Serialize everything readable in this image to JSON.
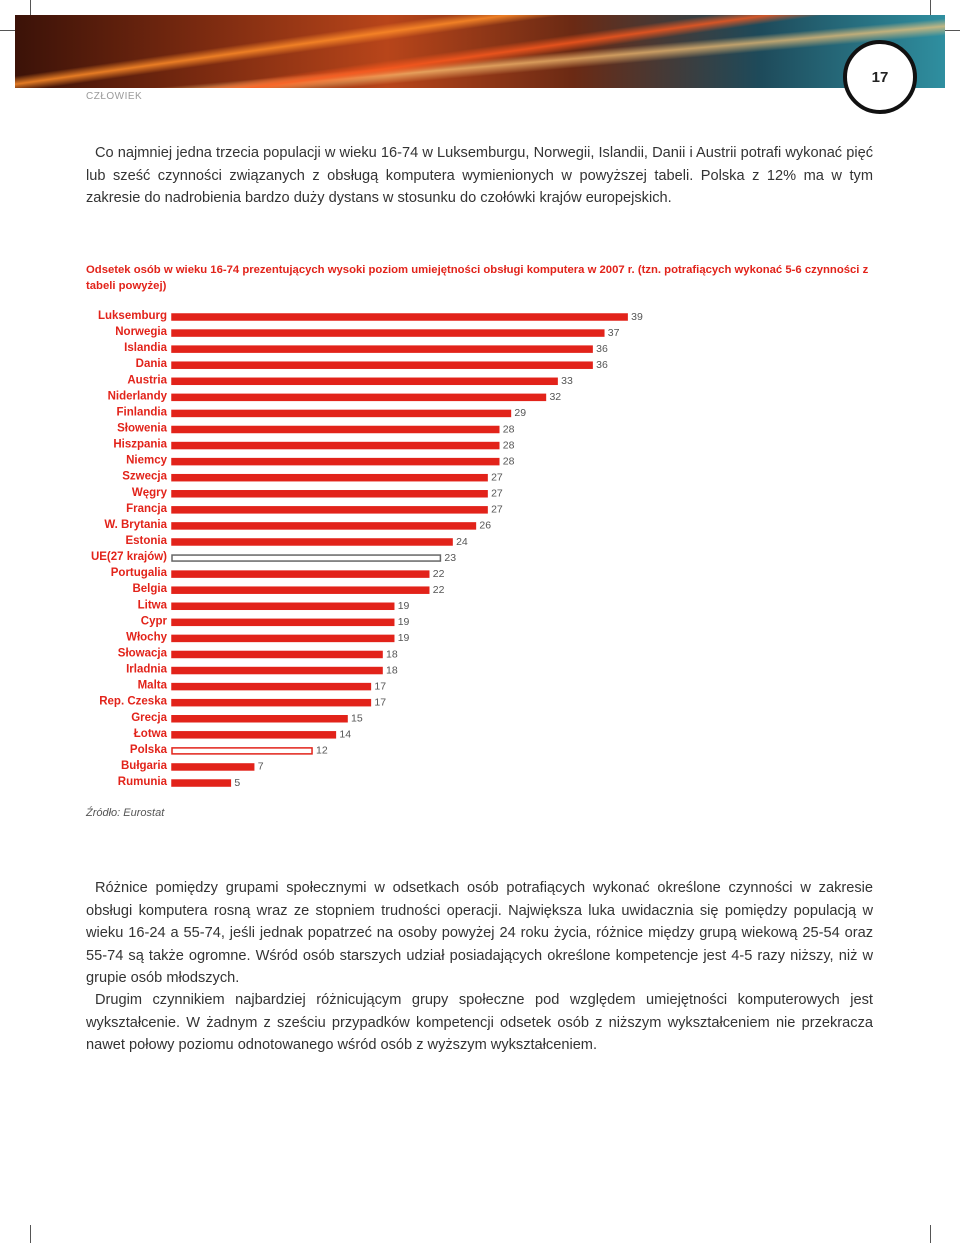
{
  "header": {
    "section": "CZŁOWIEK",
    "page_number": "17"
  },
  "intro": "Co najmniej jedna trzecia populacji w wieku 16-74 w Luksemburgu, Norwegii, Islandii, Danii i Austrii potrafi wykonać pięć lub sześć czynności związanych z obsługą komputera wymienionych w powyższej tabeli. Polska z 12% ma w tym zakresie do nadrobienia bardzo duży dystans w stosunku do czołówki krajów europejskich.",
  "chart_data": {
    "type": "bar",
    "orientation": "horizontal",
    "title": "Odsetek osób w wieku 16-74 prezentujących wysoki poziom umiejętności obsługi komputera w 2007 r. (tzn. potrafiących wykonać 5-6 czynności z tabeli powyżej)",
    "categories": [
      "Luksemburg",
      "Norwegia",
      "Islandia",
      "Dania",
      "Austria",
      "Niderlandy",
      "Finlandia",
      "Słowenia",
      "Hiszpania",
      "Niemcy",
      "Szwecja",
      "Węgry",
      "Francja",
      "W. Brytania",
      "Estonia",
      "UE(27 krajów)",
      "Portugalia",
      "Belgia",
      "Litwa",
      "Cypr",
      "Włochy",
      "Słowacja",
      "Irladnia",
      "Malta",
      "Rep. Czeska",
      "Grecja",
      "Łotwa",
      "Polska",
      "Bułgaria",
      "Rumunia"
    ],
    "values": [
      39,
      37,
      36,
      36,
      33,
      32,
      29,
      28,
      28,
      28,
      27,
      27,
      27,
      26,
      24,
      23,
      22,
      22,
      19,
      19,
      19,
      18,
      18,
      17,
      17,
      15,
      14,
      12,
      7,
      5
    ],
    "colors": [
      "#e2231a",
      "#e2231a",
      "#e2231a",
      "#e2231a",
      "#e2231a",
      "#e2231a",
      "#e2231a",
      "#e2231a",
      "#e2231a",
      "#e2231a",
      "#e2231a",
      "#e2231a",
      "#e2231a",
      "#e2231a",
      "#e2231a",
      "#ffffff",
      "#e2231a",
      "#e2231a",
      "#e2231a",
      "#e2231a",
      "#e2231a",
      "#e2231a",
      "#e2231a",
      "#e2231a",
      "#e2231a",
      "#e2231a",
      "#e2231a",
      "#ffffff",
      "#e2231a",
      "#e2231a"
    ],
    "edge_colors": [
      "#e2231a",
      "#e2231a",
      "#e2231a",
      "#e2231a",
      "#e2231a",
      "#e2231a",
      "#e2231a",
      "#e2231a",
      "#e2231a",
      "#e2231a",
      "#e2231a",
      "#e2231a",
      "#e2231a",
      "#e2231a",
      "#e2231a",
      "#666666",
      "#e2231a",
      "#e2231a",
      "#e2231a",
      "#e2231a",
      "#e2231a",
      "#e2231a",
      "#e2231a",
      "#e2231a",
      "#e2231a",
      "#e2231a",
      "#e2231a",
      "#e2231a",
      "#e2231a",
      "#e2231a"
    ],
    "source": "Źródło: Eurostat"
  },
  "body": [
    "Różnice pomiędzy grupami społecznymi w odsetkach osób potrafiących wykonać określone czynności w zakresie obsługi komputera rosną wraz ze stopniem trudności operacji. Największa luka uwidacznia się pomiędzy populacją w wieku 16-24 a 55-74, jeśli jednak popatrzeć na osoby powyżej 24 roku życia, różnice między grupą wiekową 25-54 oraz 55-74 są także ogromne. Wśród osób starszych udział posiadających określone kompetencje jest 4-5 razy niższy, niż w grupie osób młodszych.",
    "Drugim czynnikiem najbardziej różnicującym grupy społeczne pod względem umiejętności komputerowych jest wykształcenie. W żadnym z sześciu przypadków kompetencji odsetek osób z niższym wykształceniem nie przekracza nawet połowy poziomu odnotowanego wśród osób z wyższym wykształceniem."
  ]
}
